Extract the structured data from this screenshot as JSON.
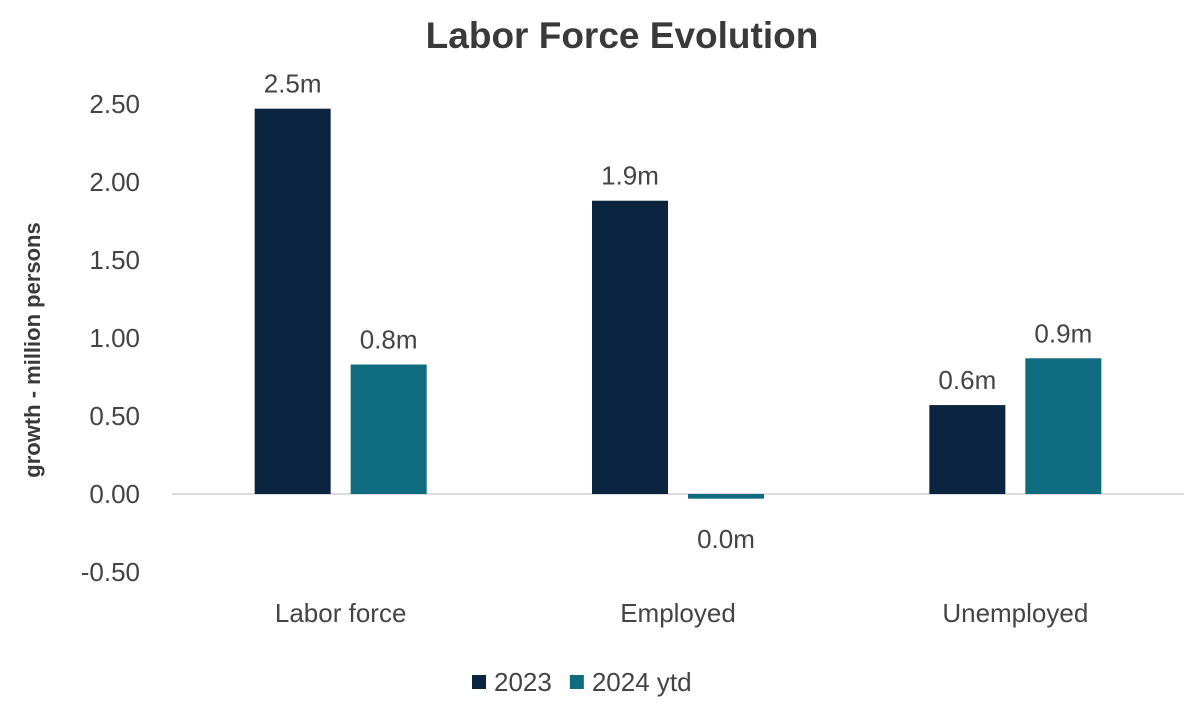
{
  "chart_data": {
    "type": "bar",
    "title": "Labor Force Evolution",
    "xlabel": "",
    "ylabel": "growth - million persons",
    "ylim": [
      -0.5,
      2.5
    ],
    "yticks": [
      2.5,
      2.0,
      1.5,
      1.0,
      0.5,
      0.0,
      -0.5
    ],
    "ytick_labels": [
      "2.50",
      "2.00",
      "1.50",
      "1.00",
      "0.50",
      "0.00",
      "-0.50"
    ],
    "categories": [
      "Labor force",
      "Employed",
      "Unemployed"
    ],
    "series": [
      {
        "name": "2023",
        "color": "#0b2540",
        "values": [
          2.47,
          1.88,
          0.57
        ],
        "labels": [
          "2.5m",
          "1.9m",
          "0.6m"
        ]
      },
      {
        "name": "2024 ytd",
        "color": "#0e6b80",
        "values": [
          0.83,
          -0.03,
          0.87
        ],
        "labels": [
          "0.8m",
          "0.0m",
          "0.9m"
        ]
      }
    ],
    "grid": false,
    "legend": "bottom",
    "colors": {
      "title": "#3a3a3a",
      "axis_text": "#444444",
      "baseline": "#d0d0d0"
    }
  }
}
